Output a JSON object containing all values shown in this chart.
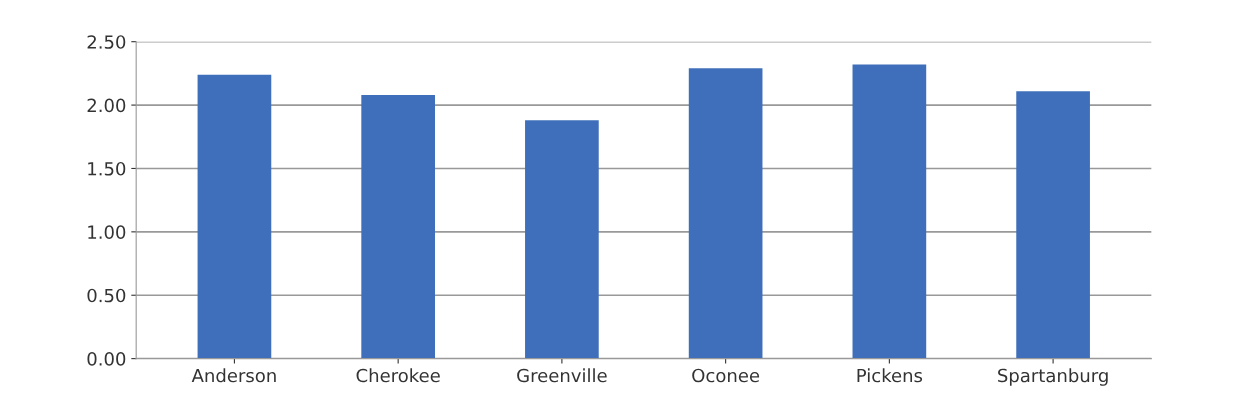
{
  "chart_data": {
    "type": "bar",
    "categories": [
      "Anderson",
      "Cherokee",
      "Greenville",
      "Oconee",
      "Pickens",
      "Spartanburg"
    ],
    "values": [
      2.24,
      2.08,
      1.88,
      2.29,
      2.32,
      2.11
    ],
    "color": "#3f6fba",
    "ylim": [
      0,
      2.5
    ],
    "yticks": [
      {
        "value": 0,
        "label": "0.00"
      },
      {
        "value": 0.5,
        "label": "0.50"
      },
      {
        "value": 1,
        "label": "1.00"
      },
      {
        "value": 1.5,
        "label": "1.50"
      },
      {
        "value": 2,
        "label": "2.00"
      },
      {
        "value": 2.5,
        "label": "2.50"
      }
    ],
    "grid": "y"
  }
}
